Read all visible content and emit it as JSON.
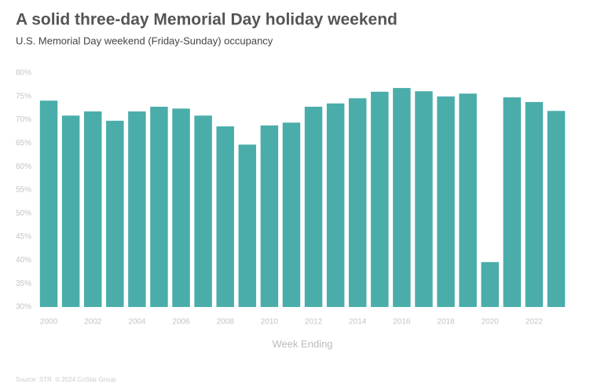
{
  "chart_data": {
    "type": "bar",
    "title": "A solid three-day Memorial Day holiday weekend",
    "subtitle": "U.S. Memorial Day weekend (Friday-Sunday) occupancy",
    "x_label": "Week Ending",
    "source": "Source: STR. © 2024 CoStar Group",
    "categories": [
      "2000",
      null,
      "2002",
      null,
      "2004",
      null,
      "2006",
      null,
      "2008",
      null,
      "2010",
      null,
      "2012",
      null,
      "2014",
      null,
      "2016",
      null,
      "2018",
      null,
      "2020",
      null,
      "2022",
      null
    ],
    "values": [
      74.1,
      70.9,
      71.8,
      69.8,
      71.8,
      72.8,
      72.4,
      70.9,
      68.6,
      64.7,
      68.8,
      69.4,
      72.8,
      73.5,
      74.6,
      76.0,
      76.8,
      76.1,
      75.0,
      75.6,
      39.6,
      74.8,
      73.8,
      71.9
    ],
    "color": "#4aadaa",
    "ylim": [
      30,
      80
    ],
    "yticks": [
      {
        "value": 30,
        "label": "30%"
      },
      {
        "value": 35,
        "label": "35%"
      },
      {
        "value": 40,
        "label": "40%"
      },
      {
        "value": 45,
        "label": "45%"
      },
      {
        "value": 50,
        "label": "50%"
      },
      {
        "value": 55,
        "label": "55%"
      },
      {
        "value": 60,
        "label": "60%"
      },
      {
        "value": 65,
        "label": "65%"
      },
      {
        "value": 70,
        "label": "70%"
      },
      {
        "value": 75,
        "label": "75%"
      },
      {
        "value": 80,
        "label": "80%"
      }
    ],
    "grid": false
  }
}
